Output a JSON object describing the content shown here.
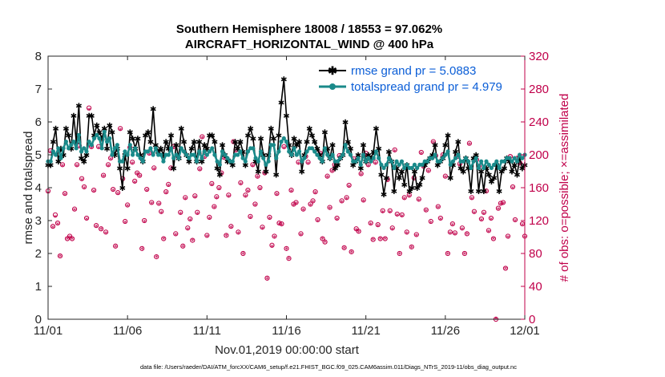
{
  "chart_data": {
    "type": "line",
    "title": "Southern Hemisphere 18008 / 18553 = 97.062%",
    "subtitle": "AIRCRAFT_HORIZONTAL_WIND @ 400 hPa",
    "xlabel": "Nov.01,2019 00:00:00 start",
    "ylabel": "rmse and totalspread",
    "ylabel_right": "# of obs: o=possible; ×=assimilated",
    "footnote": "data file: /Users/raeder/DAI/ATM_forcXX/CAM6_setup/f.e21.FHIST_BGC.f09_025.CAM6assim.011/Diags_NTrS_2019-11/obs_diag_output.nc",
    "ylim": [
      0,
      8
    ],
    "ylim_right": [
      0,
      320
    ],
    "xlim": [
      0,
      30
    ],
    "x_tick_labels": [
      "11/01",
      "11/06",
      "11/11",
      "11/16",
      "11/21",
      "11/26",
      "12/01"
    ],
    "x_tick_positions": [
      0,
      5,
      10,
      15,
      20,
      25,
      30
    ],
    "y_tick_labels": [
      "0",
      "1",
      "2",
      "3",
      "4",
      "5",
      "6",
      "7",
      "8"
    ],
    "y_right_tick_labels": [
      "0",
      "40",
      "80",
      "120",
      "160",
      "200",
      "240",
      "280",
      "320"
    ],
    "legend": {
      "location": "top-right",
      "entries": [
        "rmse grand pr = 5.0883",
        "totalspread grand pr = 4.979"
      ]
    },
    "series": [
      {
        "name": "rmse grand pr = 5.0883",
        "color": "#000000",
        "marker": "asterisk",
        "axis": "left",
        "values": [
          4.7,
          4.7,
          5.4,
          5.8,
          4.8,
          5.2,
          5.0,
          5.8,
          5.6,
          5.2,
          6.2,
          5.4,
          6.5,
          4.9,
          4.8,
          5.0,
          6.2,
          6.2,
          5.6,
          5.9,
          5.7,
          5.5,
          5.8,
          5.2,
          5.9,
          5.7,
          5.0,
          5.2,
          4.6,
          4.0,
          5.0,
          4.6,
          5.7,
          5.5,
          5.2,
          5.5,
          5.0,
          4.8,
          5.6,
          5.7,
          5.4,
          6.4,
          5.3,
          5.1,
          5.2,
          5.0,
          5.4,
          5.2,
          5.6,
          4.6,
          5.3,
          4.9,
          5.8,
          5.4,
          5.0,
          4.8,
          5.2,
          5.4,
          4.8,
          5.4,
          4.8,
          5.3,
          5.2,
          5.6,
          5.6,
          5.4,
          4.6,
          4.4,
          5.3,
          5.0,
          4.8,
          4.8,
          4.7,
          5.4,
          5.2,
          5.4,
          5.1,
          4.7,
          5.6,
          5.8,
          5.5,
          4.8,
          4.5,
          5.5,
          5.0,
          4.5,
          5.0,
          5.8,
          5.5,
          4.4,
          5.6,
          6.6,
          7.3,
          6.2,
          5.3,
          5.0,
          5.5,
          5.3,
          5.4,
          4.5,
          5.0,
          5.4,
          5.8,
          5.6,
          5.4,
          5.2,
          5.0,
          4.8,
          5.7,
          5.2,
          4.9,
          5.3,
          4.6,
          4.7,
          4.9,
          5.0,
          6.0,
          5.4,
          5.2,
          4.7,
          4.8,
          5.0,
          4.6,
          5.3,
          4.8,
          5.0,
          4.9,
          5.1,
          5.8,
          5.2,
          4.4,
          3.8,
          4.3,
          5.1,
          4.8,
          3.9,
          4.6,
          4.3,
          4.5,
          4.1,
          4.7,
          3.9,
          4.0,
          4.5,
          4.0,
          4.1,
          4.3,
          4.7,
          4.8,
          4.9,
          5.0,
          5.3,
          4.7,
          4.8,
          4.9,
          5.3,
          5.6,
          4.3,
          4.7,
          5.1,
          5.4,
          4.6,
          4.5,
          4.9,
          4.6,
          3.9,
          4.9,
          5.0,
          3.9,
          4.5,
          3.9,
          4.6,
          4.4,
          4.2,
          4.3,
          4.7,
          3.9,
          4.5,
          4.6,
          4.9,
          4.8,
          4.5,
          4.7,
          4.4,
          4.9,
          4.6,
          4.7
        ],
        "values_note": "series of rmse per time step (approx. every 6 hours); first value at x=0"
      },
      {
        "name": "totalspread grand pr = 4.979",
        "color": "#1a8a8a",
        "marker": "circle",
        "axis": "left",
        "values": [
          4.8,
          4.8,
          5.1,
          5.0,
          5.2,
          4.9,
          5.2,
          5.4,
          5.2,
          5.3,
          5.4,
          5.2,
          5.6,
          5.1,
          5.2,
          5.1,
          5.4,
          5.3,
          5.5,
          5.6,
          5.5,
          5.2,
          5.7,
          5.4,
          5.5,
          5.0,
          5.2,
          5.3,
          4.8,
          4.8,
          5.1,
          5.0,
          5.3,
          5.0,
          5.2,
          5.0,
          4.9,
          4.8,
          5.1,
          5.1,
          5.2,
          5.0,
          5.2,
          5.0,
          5.0,
          4.8,
          5.0,
          5.0,
          5.2,
          4.9,
          5.0,
          4.9,
          5.2,
          5.1,
          5.0,
          4.9,
          5.0,
          5.0,
          4.8,
          5.1,
          4.9,
          5.1,
          5.0,
          5.1,
          5.2,
          5.0,
          4.8,
          4.7,
          5.1,
          5.0,
          4.9,
          4.8,
          4.8,
          5.0,
          5.0,
          5.1,
          4.9,
          4.8,
          5.1,
          5.2,
          5.2,
          4.9,
          4.8,
          5.1,
          4.9,
          4.7,
          4.8,
          5.3,
          5.3,
          4.9,
          5.1,
          5.4,
          5.5,
          5.4,
          5.1,
          5.0,
          5.2,
          5.0,
          5.1,
          4.8,
          4.9,
          5.1,
          5.2,
          5.2,
          5.1,
          5.0,
          4.9,
          4.8,
          5.2,
          5.0,
          4.9,
          5.0,
          4.8,
          4.8,
          4.9,
          5.0,
          5.3,
          5.1,
          5.0,
          4.8,
          4.8,
          4.9,
          4.7,
          5.0,
          4.8,
          4.9,
          4.8,
          4.9,
          5.1,
          4.9,
          4.7,
          4.6,
          4.7,
          4.9,
          4.8,
          4.6,
          4.8,
          4.7,
          4.8,
          4.6,
          4.7,
          4.6,
          4.6,
          4.7,
          4.6,
          4.7,
          4.7,
          4.8,
          4.8,
          4.9,
          4.9,
          5.0,
          4.8,
          4.8,
          4.9,
          5.0,
          5.1,
          4.7,
          4.8,
          4.9,
          5.0,
          4.8,
          4.8,
          4.9,
          4.8,
          4.6,
          4.8,
          4.9,
          4.6,
          4.8,
          4.6,
          4.8,
          4.7,
          4.6,
          4.7,
          4.8,
          4.6,
          4.8,
          4.8,
          4.9,
          4.9,
          4.8,
          4.9,
          4.8,
          5.0,
          4.9,
          5.0
        ]
      }
    ],
    "obs_possible_note": "counts on right axis, marker o",
    "obs_possible": [
      156,
      205,
      113,
      127,
      117,
      77,
      188,
      153,
      98,
      101,
      98,
      134,
      188,
      211,
      171,
      161,
      123,
      257,
      210,
      157,
      114,
      210,
      110,
      175,
      106,
      188,
      196,
      158,
      89,
      154,
      232,
      171,
      119,
      139,
      209,
      191,
      168,
      178,
      175,
      86,
      120,
      158,
      202,
      142,
      184,
      76,
      141,
      131,
      98,
      155,
      164,
      184,
      210,
      104,
      198,
      130,
      89,
      148,
      111,
      122,
      96,
      150,
      130,
      183,
      222,
      198,
      102,
      124,
      165,
      137,
      149,
      160,
      178,
      197,
      102,
      151,
      113,
      216,
      206,
      106,
      166,
      80,
      151,
      157,
      125,
      188,
      140,
      174,
      160,
      112,
      178,
      50,
      124,
      90,
      101,
      153,
      117,
      116,
      210,
      86,
      74,
      157,
      140,
      142,
      191,
      104,
      134,
      198,
      191,
      140,
      144,
      155,
      121,
      202,
      98,
      94,
      174,
      136,
      181,
      188,
      123,
      199,
      144,
      87,
      148,
      163,
      82,
      195,
      110,
      107,
      177,
      145,
      202,
      188,
      117,
      97,
      191,
      115,
      98,
      132,
      98,
      170,
      132,
      111,
      206,
      128,
      80,
      127,
      148,
      106,
      151,
      88,
      172,
      103,
      146,
      203,
      186,
      133,
      181,
      119,
      216,
      199,
      137,
      123,
      200,
      174,
      80,
      106,
      116,
      105,
      198,
      189,
      111,
      80,
      104,
      214,
      148,
      131,
      194,
      186,
      122,
      130,
      156,
      108,
      123,
      98,
      0,
      135,
      141,
      142,
      62,
      101,
      198,
      161,
      121,
      196,
      190,
      116,
      101
    ],
    "obs_assimilated_note": "counts on right axis, marker asterisk",
    "obs_assimilated": [
      153,
      203,
      111,
      124,
      115,
      76,
      186,
      151,
      97,
      99,
      97,
      132,
      186,
      209,
      169,
      159,
      121,
      254,
      208,
      155,
      112,
      208,
      109,
      173,
      104,
      186,
      194,
      156,
      88,
      152,
      230,
      169,
      117,
      137,
      207,
      189,
      166,
      176,
      173,
      85,
      118,
      156,
      200,
      140,
      182,
      75,
      139,
      129,
      97,
      153,
      162,
      182,
      208,
      102,
      196,
      128,
      88,
      146,
      109,
      120,
      95,
      148,
      128,
      181,
      220,
      196,
      100,
      122,
      163,
      135,
      147,
      158,
      176,
      195,
      101,
      149,
      111,
      214,
      204,
      104,
      164,
      79,
      149,
      155,
      123,
      186,
      138,
      172,
      158,
      110,
      176,
      49,
      122,
      88,
      99,
      151,
      115,
      114,
      208,
      85,
      73,
      155,
      138,
      140,
      189,
      102,
      132,
      196,
      189,
      138,
      142,
      153,
      119,
      200,
      97,
      93,
      172,
      134,
      179,
      186,
      121,
      197,
      142,
      86,
      146,
      161,
      81,
      193,
      108,
      106,
      175,
      143,
      200,
      186,
      115,
      96,
      189,
      113,
      97,
      130,
      97,
      168,
      130,
      109,
      204,
      126,
      79,
      125,
      146,
      104,
      149,
      87,
      170,
      101,
      144,
      201,
      184,
      131,
      179,
      117,
      214,
      197,
      135,
      121,
      198,
      172,
      79,
      104,
      114,
      103,
      196,
      187,
      109,
      79,
      103,
      212,
      146,
      129,
      192,
      184,
      120,
      128,
      154,
      106,
      121,
      97,
      0,
      133,
      139,
      140,
      61,
      99,
      196,
      159,
      119,
      194,
      188,
      114,
      99
    ]
  },
  "colors": {
    "rmse": "#000000",
    "spread": "#1a8a8a",
    "obs": "#c0004a",
    "legend_text": "#0b5ed7"
  }
}
